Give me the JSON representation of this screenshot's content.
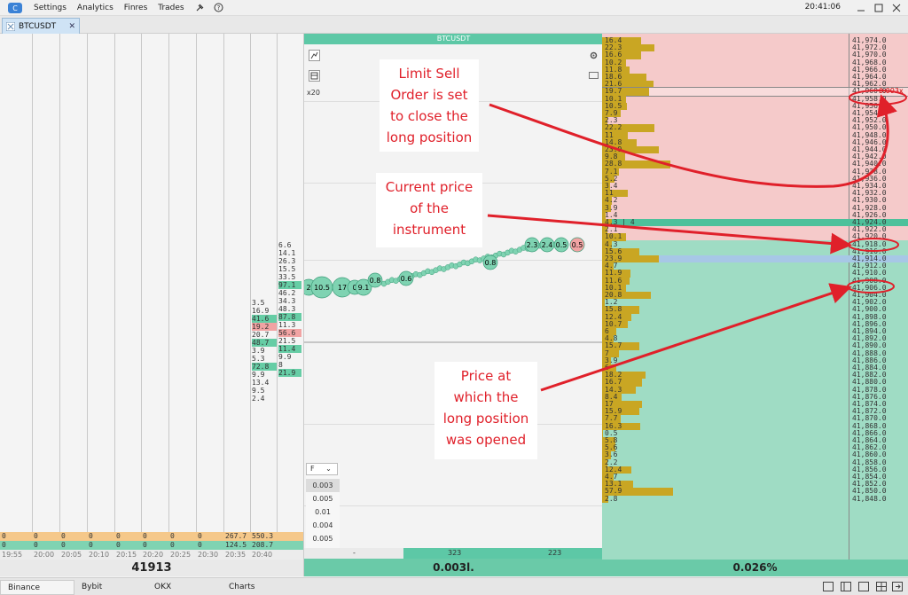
{
  "menu": [
    "Settings",
    "Analytics",
    "Finres",
    "Trades"
  ],
  "clock": "20:41:06",
  "tab": {
    "label": "BTCUSDT"
  },
  "chart": {
    "title": "BTCUSDT",
    "zoom": "x20",
    "filter_label": "F",
    "size_options": [
      "0.003",
      "0.005",
      "0.01",
      "0.004",
      "0.005"
    ],
    "bottom_left": "-",
    "bottom_mid1": "323",
    "bottom_mid2": "223",
    "footer_value": "0.003l."
  },
  "left": {
    "footer_price": "41913",
    "times": [
      "19:55",
      "20:00",
      "20:05",
      "20:10",
      "20:15",
      "20:20",
      "20:25",
      "20:30",
      "20:35",
      "20:40"
    ],
    "row1": [
      "0",
      "0",
      "0",
      "0",
      "0",
      "0",
      "0",
      "0",
      "267.7",
      "550.3"
    ],
    "row2": [
      "0",
      "0",
      "0",
      "0",
      "0",
      "0",
      "0",
      "0",
      "124.5",
      "208.7"
    ],
    "col8": [
      "3.5",
      "16.9",
      "41.6",
      "19.2",
      "20.7",
      "48.7",
      "3.9",
      "5.3",
      "72.8",
      "9.9",
      "13.4",
      "9.5",
      "2.4"
    ],
    "col9": [
      "6.6",
      "14.1",
      "26.3",
      "15.5",
      "33.5",
      "97.1",
      "46.2",
      "34.3",
      "48.3",
      "87.8",
      "11.3",
      "56.6",
      "21.5",
      "11.4",
      "9.9",
      "8",
      "21.9"
    ]
  },
  "bubbles": [
    "2",
    "10.5",
    "17",
    "0",
    "9.1",
    "0.8",
    "0.6",
    "0.8",
    "2.3",
    "2.4",
    "0.5",
    "0.5"
  ],
  "dom": {
    "footer_value": "0.026%",
    "ask_prices": [
      "41,974.0",
      "41,972.0",
      "41,970.0",
      "41,968.0",
      "41,966.0",
      "41,964.0",
      "41,962.0",
      "41,960.0",
      "41,958.0",
      "41,956.0",
      "41,954.0",
      "41,952.0",
      "41,950.0",
      "41,948.0",
      "41,946.0",
      "41,944.0",
      "41,942.0",
      "41,940.0",
      "41,938.0",
      "41,936.0",
      "41,934.0",
      "41,932.0",
      "41,930.0",
      "41,928.0",
      "41,926.0"
    ],
    "ask_vols": [
      "16.4",
      "22.3",
      "16.6",
      "10.2",
      "11.8",
      "18.6",
      "21.6",
      "19.7",
      "10.1",
      "10.5",
      "7.9",
      "2.3",
      "22.2",
      "11",
      "14.8",
      "23.9",
      "9.8",
      "28.8",
      "7.1",
      "5.2",
      "3.4",
      "11",
      "4.2",
      "3.9",
      "1.4"
    ],
    "current_price": "41,924.0",
    "current_vol": "4.3 | 4",
    "bid_prices": [
      "41,922.0",
      "41,920.0",
      "41,918.0",
      "41,916.0",
      "41,914.0",
      "41,912.0",
      "41,910.0",
      "41,908.0",
      "41,906.0",
      "41,904.0",
      "41,902.0",
      "41,900.0",
      "41,898.0",
      "41,896.0",
      "41,894.0",
      "41,892.0",
      "41,890.0",
      "41,888.0",
      "41,886.0",
      "41,884.0",
      "41,882.0",
      "41,880.0",
      "41,878.0",
      "41,876.0",
      "41,874.0",
      "41,872.0",
      "41,870.0",
      "41,868.0",
      "41,866.0",
      "41,864.0",
      "41,862.0",
      "41,860.0",
      "41,858.0",
      "41,856.0",
      "41,854.0",
      "41,852.0",
      "41,850.0",
      "41,848.0"
    ],
    "bid_vols": [
      "2.1",
      "10.1",
      "4.3",
      "15.6",
      "23.9",
      "4.7",
      "11.9",
      "11.6",
      "10.1",
      "20.8",
      "1.2",
      "15.8",
      "12.4",
      "10.7",
      "6",
      "4.8",
      "15.7",
      "7",
      "3.9",
      "6",
      "18.2",
      "16.7",
      "14.3",
      "8.4",
      "17",
      "15.9",
      "7.7",
      "16.3",
      "0.5",
      "5.8",
      "5.6",
      "3.6",
      "2.2",
      "12.4",
      "4.7",
      "13.1",
      "57.9",
      "2.8"
    ],
    "order_label": "0.003x"
  },
  "annotations": {
    "sell": "Limit Sell Order is set to close the long position",
    "current": "Current price of the instrument",
    "opened": "Price at which the long position was opened"
  },
  "exchanges": [
    "Binance",
    "Bybit",
    "OKX",
    "Charts"
  ]
}
